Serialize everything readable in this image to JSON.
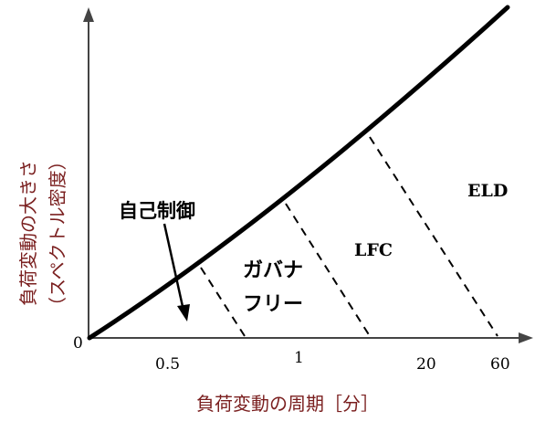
{
  "axes": {
    "y_label_line1": "負荷変動の大きさ",
    "y_label_line2": "（スペクトル密度）",
    "x_label": "負荷変動の周期［分］",
    "origin_label": "0",
    "x_ticks": [
      "0.5",
      "1",
      "20",
      "60"
    ]
  },
  "regions": {
    "self_control": "自己制御",
    "governor_free_line1": "ガバナ",
    "governor_free_line2": "フリー",
    "lfc": "LFC",
    "eld": "ELD"
  },
  "colors": {
    "axis_label": "#7a1f1f",
    "ink": "#000000"
  }
}
